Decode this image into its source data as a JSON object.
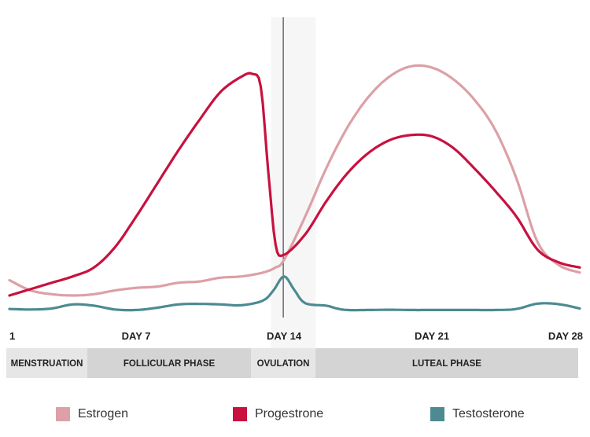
{
  "chart_data": {
    "type": "line",
    "x_ticks": [
      {
        "x": 1,
        "label": "1"
      },
      {
        "x": 7,
        "label": "DAY 7"
      },
      {
        "x": 14,
        "label": "DAY 14"
      },
      {
        "x": 21,
        "label": "DAY 21"
      },
      {
        "x": 28,
        "label": "DAY 28"
      }
    ],
    "x_range": [
      1,
      28
    ],
    "y_range": [
      0,
      100
    ],
    "ovulation_day": 14,
    "highlight_band": [
      13.6,
      15.5
    ],
    "phases": [
      {
        "label": "MENSTRUATION",
        "start": 1,
        "end": 4.9,
        "shade": "#e6e6e6"
      },
      {
        "label": "FOLLICULAR PHASE",
        "start": 4.9,
        "end": 13.6,
        "shade": "#d4d4d4"
      },
      {
        "label": "OVULATION",
        "start": 13.6,
        "end": 15.5,
        "shade": "#e6e6e6"
      },
      {
        "label": "LUTEAL PHASE",
        "start": 15.5,
        "end": 28,
        "shade": "#d4d4d4"
      }
    ],
    "series": [
      {
        "name": "Estrogen",
        "color": "#dca0a6",
        "points": [
          [
            1,
            12
          ],
          [
            2,
            8
          ],
          [
            3,
            6.5
          ],
          [
            4,
            6
          ],
          [
            5,
            6.5
          ],
          [
            6,
            8
          ],
          [
            7,
            9
          ],
          [
            8,
            9.5
          ],
          [
            9,
            11
          ],
          [
            10,
            11.5
          ],
          [
            11,
            13
          ],
          [
            12,
            13.5
          ],
          [
            13,
            15
          ],
          [
            13.6,
            17
          ],
          [
            14,
            20
          ],
          [
            15,
            37
          ],
          [
            16,
            56
          ],
          [
            17,
            72
          ],
          [
            18,
            84
          ],
          [
            19,
            92
          ],
          [
            20,
            96
          ],
          [
            21,
            95.5
          ],
          [
            22,
            91
          ],
          [
            23,
            83
          ],
          [
            24,
            71
          ],
          [
            25,
            52
          ],
          [
            26,
            27
          ],
          [
            27,
            18
          ],
          [
            28,
            15
          ]
        ],
        "samples": 260
      },
      {
        "name": "Progestrone",
        "color": "#c8113f",
        "points": [
          [
            1,
            6
          ],
          [
            2,
            8.5
          ],
          [
            3,
            11
          ],
          [
            4,
            13.5
          ],
          [
            5,
            17
          ],
          [
            6,
            25
          ],
          [
            7,
            37
          ],
          [
            8,
            50
          ],
          [
            9,
            63
          ],
          [
            10,
            75
          ],
          [
            11,
            86
          ],
          [
            12,
            92
          ],
          [
            12.5,
            93
          ],
          [
            12.9,
            88
          ],
          [
            13.25,
            55
          ],
          [
            13.6,
            26
          ],
          [
            14,
            22
          ],
          [
            15,
            30
          ],
          [
            16,
            43
          ],
          [
            17,
            54
          ],
          [
            18,
            62
          ],
          [
            19,
            67
          ],
          [
            20,
            69
          ],
          [
            21,
            68.5
          ],
          [
            22,
            64
          ],
          [
            23,
            56
          ],
          [
            24,
            47
          ],
          [
            25,
            37
          ],
          [
            26,
            24
          ],
          [
            27,
            19
          ],
          [
            28,
            17
          ]
        ],
        "samples": 300
      },
      {
        "name": "Testosterone",
        "color": "#4d8a92",
        "points": [
          [
            1,
            0.7
          ],
          [
            2,
            0.5
          ],
          [
            3,
            0.9
          ],
          [
            4,
            2.5
          ],
          [
            5,
            2
          ],
          [
            6,
            0.5
          ],
          [
            7,
            0.3
          ],
          [
            8,
            1.2
          ],
          [
            9,
            2.5
          ],
          [
            10,
            2.7
          ],
          [
            11,
            2.5
          ],
          [
            12,
            2.2
          ],
          [
            13,
            4
          ],
          [
            13.5,
            8
          ],
          [
            14,
            13.5
          ],
          [
            14.5,
            8
          ],
          [
            15,
            3
          ],
          [
            16,
            2
          ],
          [
            16.5,
            0.9
          ],
          [
            17,
            0.3
          ],
          [
            18,
            0.3
          ],
          [
            19,
            0.4
          ],
          [
            20,
            0.3
          ],
          [
            21,
            0.3
          ],
          [
            22,
            0.3
          ],
          [
            23,
            0.3
          ],
          [
            24,
            0.3
          ],
          [
            25,
            0.7
          ],
          [
            26,
            2.8
          ],
          [
            27,
            2.6
          ],
          [
            28,
            0.9
          ]
        ],
        "samples": 260
      }
    ]
  },
  "legend": [
    {
      "label": "Estrogen",
      "color": "#dca0a6"
    },
    {
      "label": "Progestrone",
      "color": "#c8113f"
    },
    {
      "label": "Testosterone",
      "color": "#4d8a92"
    }
  ]
}
